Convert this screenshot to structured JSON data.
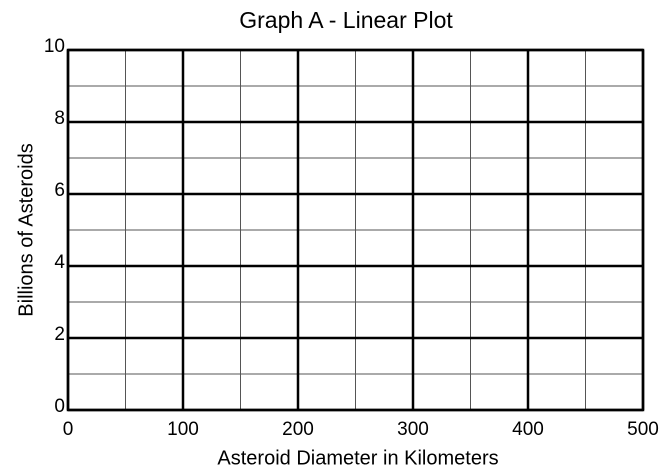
{
  "chart_data": {
    "type": "line",
    "title": "Graph A - Linear Plot",
    "xlabel": "Asteroid Diameter in Kilometers",
    "ylabel": "Billions of Asteroids",
    "series": [],
    "xlim": [
      0,
      500
    ],
    "xticks": [
      0,
      100,
      200,
      300,
      400,
      500
    ],
    "xminorticks": [
      50,
      150,
      250,
      350,
      450
    ],
    "ylim": [
      0,
      10
    ],
    "yticks": [
      0,
      2,
      4,
      6,
      8,
      10
    ],
    "yminorticks": [
      1,
      3,
      5,
      7,
      9
    ],
    "grid": true
  }
}
